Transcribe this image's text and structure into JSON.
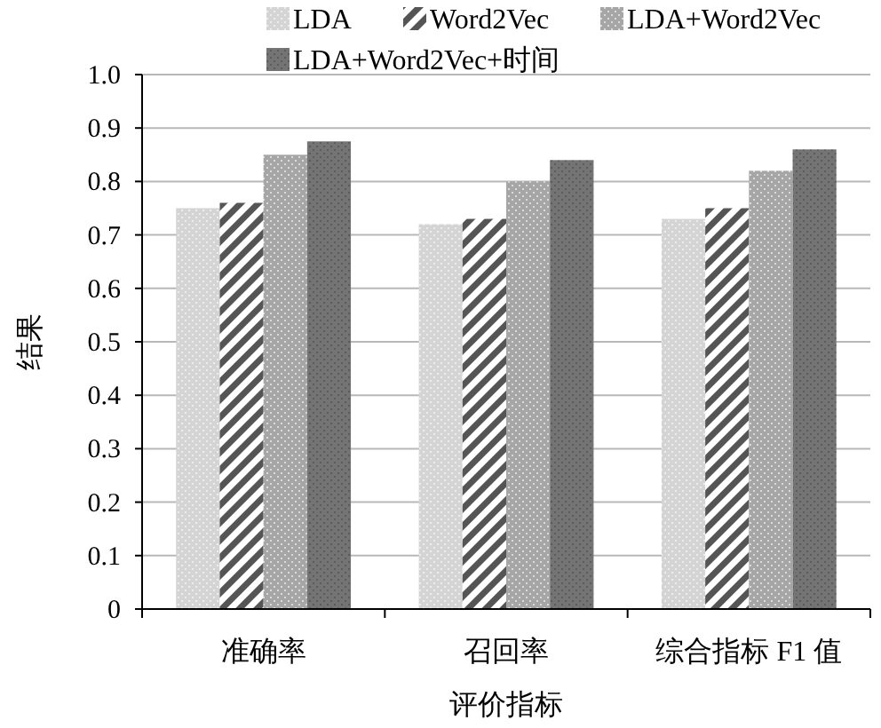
{
  "chart_data": {
    "type": "bar",
    "xlabel": "评价指标",
    "ylabel": "结果",
    "categories": [
      "准确率",
      "召回率",
      "综合指标 F1 值"
    ],
    "series": [
      {
        "name": "LDA",
        "color": "#d4d4d4",
        "values": [
          0.75,
          0.72,
          0.73
        ]
      },
      {
        "name": "Word2Vec",
        "color": "#555555",
        "values": [
          0.76,
          0.73,
          0.75
        ]
      },
      {
        "name": "LDA+Word2Vec",
        "color": "#a6a6a6",
        "values": [
          0.85,
          0.8,
          0.82
        ]
      },
      {
        "name": "LDA+Word2Vec+时间",
        "color": "#747474",
        "values": [
          0.875,
          0.84,
          0.86
        ]
      }
    ],
    "ylim": [
      0,
      1.0
    ],
    "yticks": [
      {
        "value": 0,
        "label": "0"
      },
      0.1,
      0.2,
      0.3,
      0.4,
      0.5,
      0.6,
      0.7,
      0.8,
      0.9,
      {
        "value": 1.0,
        "label": "1.0"
      }
    ],
    "grid": "y",
    "legend": "top"
  }
}
